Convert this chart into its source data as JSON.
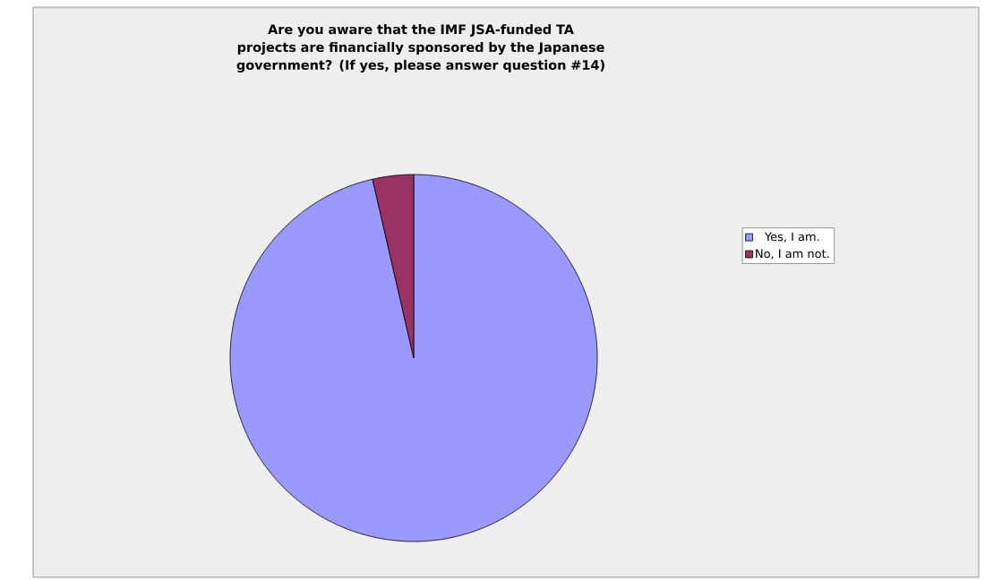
{
  "chart_data": {
    "type": "pie",
    "title": "**Are you aware that the IMF JSA-funded TA projects are financially sponsored by the Japanese government?  (If yes, please answer question #14)**",
    "categories": [
      "Yes, I am.",
      "No, I am not."
    ],
    "values": [
      96.4,
      3.6
    ],
    "colors": [
      "#9999ff",
      "#993366"
    ],
    "legend": "right"
  }
}
